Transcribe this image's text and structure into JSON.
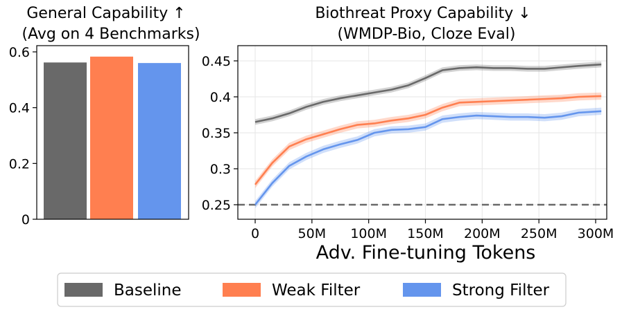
{
  "chart_data": [
    {
      "type": "bar",
      "title_line1": "General Capability  ↑",
      "title_line2": "(Avg on 4 Benchmarks)",
      "categories": [
        "Baseline",
        "Weak Filter",
        "Strong Filter"
      ],
      "values": [
        0.562,
        0.583,
        0.56
      ],
      "ylim": [
        0,
        0.6
      ],
      "yticks": [
        0,
        0.2,
        0.4,
        0.6
      ],
      "ytick_labels": [
        "0",
        "0.2",
        "0.4",
        "0.6"
      ],
      "colors": [
        "#696969",
        "#ff7f50",
        "#6495ed"
      ]
    },
    {
      "type": "line",
      "title_line1": "Biothreat Proxy Capability   ↓",
      "title_line2": "(WMDP-Bio, Cloze Eval)",
      "xlabel": "Adv. Fine-tuning Tokens",
      "xlim_M": [
        -15,
        320
      ],
      "ylim": [
        0.23,
        0.468
      ],
      "xticks_M": [
        0,
        50,
        100,
        150,
        200,
        250,
        300
      ],
      "xtick_labels": [
        "0",
        "50M",
        "100M",
        "150M",
        "200M",
        "250M",
        "300M"
      ],
      "yticks": [
        0.25,
        0.3,
        0.35,
        0.4,
        0.45
      ],
      "ytick_labels": [
        "0.25",
        "0.3",
        "0.35",
        "0.4",
        "0.45"
      ],
      "x_M": [
        0,
        15,
        30,
        45,
        60,
        75,
        90,
        105,
        120,
        135,
        150,
        165,
        180,
        195,
        210,
        225,
        240,
        255,
        270,
        285,
        305
      ],
      "reference_line": 0.25,
      "series": [
        {
          "name": "Baseline",
          "color": "#696969",
          "values": [
            0.365,
            0.37,
            0.377,
            0.386,
            0.393,
            0.398,
            0.402,
            0.406,
            0.41,
            0.416,
            0.426,
            0.437,
            0.44,
            0.441,
            0.44,
            0.44,
            0.439,
            0.439,
            0.441,
            0.443,
            0.445
          ],
          "band": 0.004
        },
        {
          "name": "Weak Filter",
          "color": "#ff7f50",
          "values": [
            0.278,
            0.308,
            0.331,
            0.341,
            0.348,
            0.355,
            0.361,
            0.363,
            0.367,
            0.37,
            0.375,
            0.385,
            0.392,
            0.393,
            0.394,
            0.395,
            0.396,
            0.397,
            0.398,
            0.4,
            0.401
          ],
          "band": 0.005
        },
        {
          "name": "Strong Filter",
          "color": "#6495ed",
          "values": [
            0.25,
            0.28,
            0.304,
            0.317,
            0.327,
            0.334,
            0.34,
            0.35,
            0.354,
            0.355,
            0.358,
            0.369,
            0.372,
            0.374,
            0.373,
            0.372,
            0.372,
            0.371,
            0.373,
            0.378,
            0.38
          ],
          "band": 0.005
        }
      ]
    }
  ],
  "legend": [
    {
      "label": "Baseline",
      "color": "#696969"
    },
    {
      "label": "Weak Filter",
      "color": "#ff7f50"
    },
    {
      "label": "Strong Filter",
      "color": "#6495ed"
    }
  ]
}
